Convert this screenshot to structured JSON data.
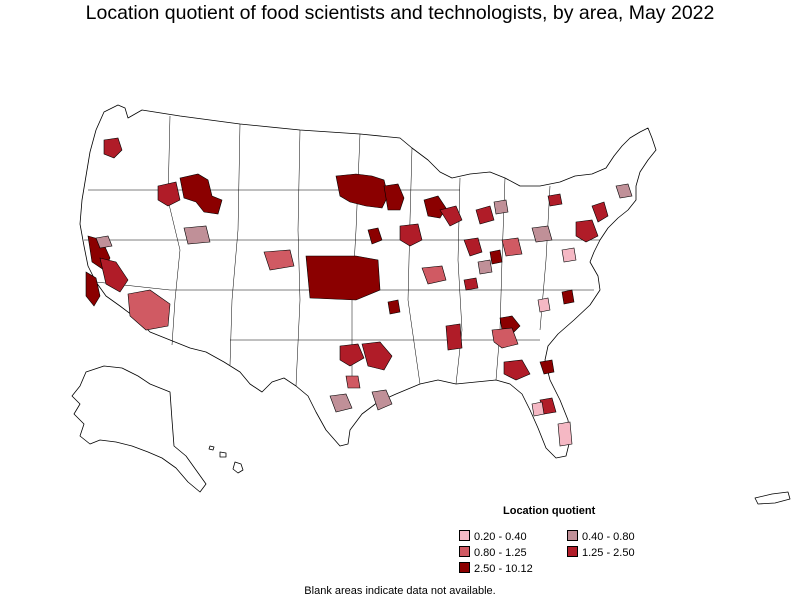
{
  "title": "Location quotient of food scientists and technologists, by area, May 2022",
  "legend": {
    "title": "Location quotient",
    "items": [
      {
        "label": "0.20 - 0.40",
        "color": "#f5b8c4"
      },
      {
        "label": "0.40 - 0.80",
        "color": "#c09098"
      },
      {
        "label": "0.80 - 1.25",
        "color": "#d05a63"
      },
      {
        "label": "1.25 - 2.50",
        "color": "#b01c28"
      },
      {
        "label": "2.50 - 10.12",
        "color": "#8b0000"
      }
    ]
  },
  "footnote": "Blank areas indicate data not available.",
  "colors": {
    "no_data": "#ffffff",
    "border": "#000000"
  }
}
